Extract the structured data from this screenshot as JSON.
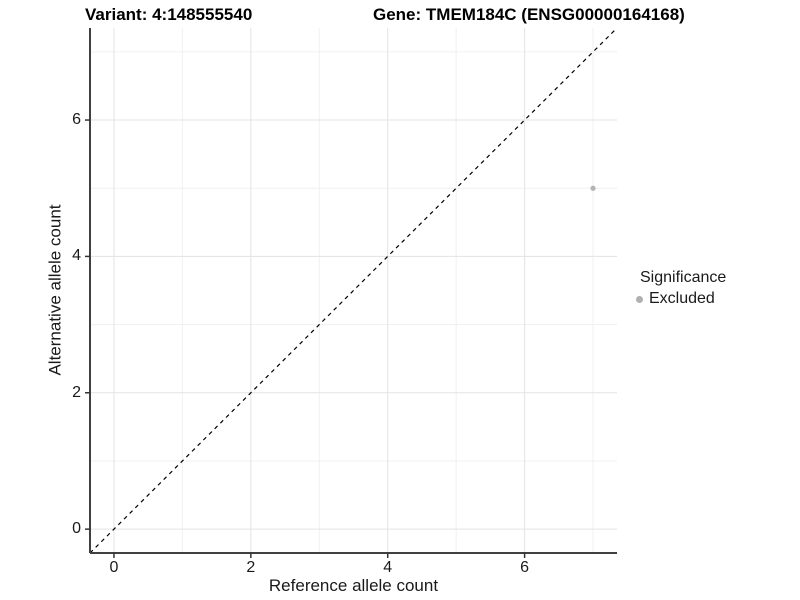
{
  "chart_data": {
    "type": "scatter",
    "title_variant": "Variant: 4:148555540",
    "title_gene": "Gene: TMEM184C (ENSG00000164168)",
    "xlabel": "Reference allele count",
    "ylabel": "Alternative allele count",
    "xlim": [
      -0.35,
      7.35
    ],
    "ylim": [
      -0.35,
      7.35
    ],
    "x_ticks": [
      0,
      2,
      4,
      6
    ],
    "y_ticks": [
      0,
      2,
      4,
      6
    ],
    "x_tick_labels": [
      "0",
      "2",
      "4",
      "6"
    ],
    "y_tick_labels": [
      "0",
      "2",
      "4",
      "6"
    ],
    "x_minor_ticks": [
      1,
      3,
      5,
      7
    ],
    "y_minor_ticks": [
      1,
      3,
      5,
      7
    ],
    "grid": true,
    "reference_line": {
      "slope": 1,
      "intercept": 0,
      "style": "dashed",
      "color": "#000000"
    },
    "series": [
      {
        "name": "Excluded",
        "color": "#b4b4b4",
        "points": [
          {
            "x": 7,
            "y": 5
          }
        ]
      }
    ],
    "legend": {
      "title": "Significance",
      "position": "right",
      "items": [
        {
          "label": "Excluded",
          "color": "#b0b0b0",
          "marker": "circle"
        }
      ]
    }
  },
  "colors": {
    "background": "#ffffff",
    "grid_major": "#e3e3e3",
    "grid_minor": "#f0f0f0",
    "axis_line": "#404040",
    "tick_mark": "#333333",
    "text": "#1a1a1a",
    "point": "#b4b4b4"
  }
}
